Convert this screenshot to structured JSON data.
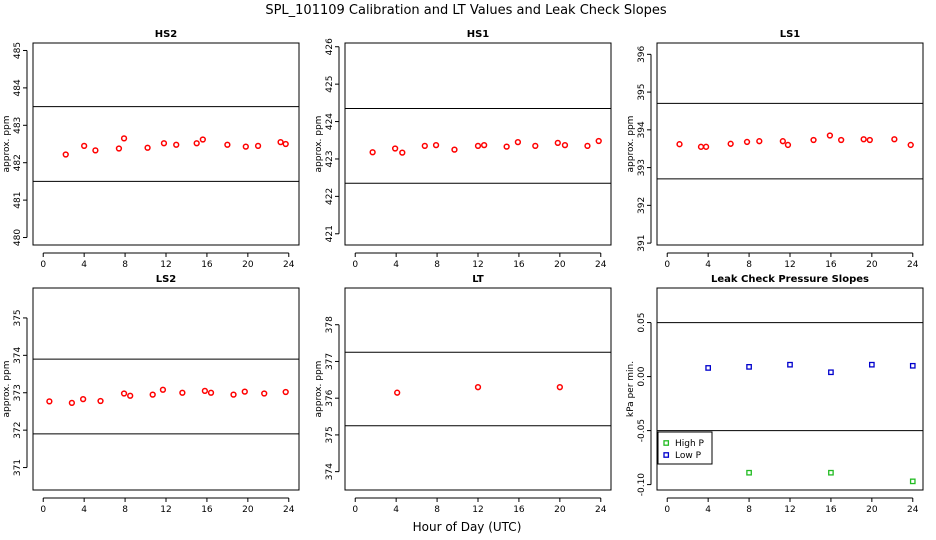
{
  "figure": {
    "title": "SPL_101109  Calibration and LT Values and Leak Check Slopes",
    "xlabel": "Hour of Day (UTC)"
  },
  "chart_data": [
    {
      "type": "scatter",
      "title": "HS2",
      "ylabel": "approx. ppm",
      "xlim": [
        -1,
        25
      ],
      "ylim": [
        479.8,
        485.2
      ],
      "xticks": [
        0,
        4,
        8,
        12,
        16,
        20,
        24
      ],
      "yticks": [
        480,
        481,
        482,
        483,
        484,
        485
      ],
      "hlines": [
        483.5,
        481.5
      ],
      "series": [
        {
          "name": "values",
          "color": "#ff0000",
          "x": [
            2.2,
            4.0,
            5.1,
            7.4,
            7.9,
            10.2,
            11.8,
            13.0,
            15.0,
            15.6,
            18.0,
            19.8,
            21.0,
            23.2,
            23.7
          ],
          "y": [
            482.22,
            482.45,
            482.33,
            482.38,
            482.65,
            482.4,
            482.52,
            482.48,
            482.52,
            482.62,
            482.48,
            482.43,
            482.45,
            482.55,
            482.5
          ]
        }
      ]
    },
    {
      "type": "scatter",
      "title": "HS1",
      "ylabel": "approx. ppm",
      "xlim": [
        -1,
        25
      ],
      "ylim": [
        420.7,
        426.1
      ],
      "xticks": [
        0,
        4,
        8,
        12,
        16,
        20,
        24
      ],
      "yticks": [
        421,
        422,
        423,
        424,
        425,
        426
      ],
      "hlines": [
        424.35,
        422.35
      ],
      "series": [
        {
          "name": "values",
          "color": "#ff0000",
          "x": [
            1.7,
            3.9,
            4.6,
            6.8,
            7.9,
            9.7,
            12.0,
            12.6,
            14.8,
            15.9,
            17.6,
            19.8,
            20.5,
            22.7,
            23.8
          ],
          "y": [
            423.18,
            423.28,
            423.17,
            423.35,
            423.37,
            423.25,
            423.35,
            423.37,
            423.33,
            423.45,
            423.35,
            423.43,
            423.37,
            423.35,
            423.48
          ]
        }
      ]
    },
    {
      "type": "scatter",
      "title": "LS1",
      "ylabel": "approx. ppm",
      "xlim": [
        -1,
        25
      ],
      "ylim": [
        390.95,
        396.3
      ],
      "xticks": [
        0,
        4,
        8,
        12,
        16,
        20,
        24
      ],
      "yticks": [
        391,
        392,
        393,
        394,
        395,
        396
      ],
      "hlines": [
        394.7,
        392.7
      ],
      "series": [
        {
          "name": "values",
          "color": "#ff0000",
          "x": [
            1.2,
            3.3,
            3.8,
            6.2,
            7.8,
            9.0,
            11.3,
            11.8,
            14.3,
            15.9,
            17.0,
            19.2,
            19.8,
            22.2,
            23.8
          ],
          "y": [
            393.62,
            393.55,
            393.55,
            393.63,
            393.68,
            393.7,
            393.7,
            393.6,
            393.73,
            393.85,
            393.73,
            393.75,
            393.73,
            393.75,
            393.6
          ]
        }
      ]
    },
    {
      "type": "scatter",
      "title": "LS2",
      "ylabel": "approx. ppm",
      "xlim": [
        -1,
        25
      ],
      "ylim": [
        370.4,
        375.8
      ],
      "xticks": [
        0,
        4,
        8,
        12,
        16,
        20,
        24
      ],
      "yticks": [
        371,
        372,
        373,
        374,
        375
      ],
      "hlines": [
        373.9,
        371.9
      ],
      "series": [
        {
          "name": "values",
          "color": "#ff0000",
          "x": [
            0.6,
            2.8,
            3.9,
            5.6,
            7.9,
            8.5,
            10.7,
            11.7,
            13.6,
            15.8,
            16.4,
            18.6,
            19.7,
            21.6,
            23.7
          ],
          "y": [
            372.77,
            372.73,
            372.83,
            372.78,
            372.98,
            372.92,
            372.95,
            373.08,
            373.0,
            373.05,
            373.0,
            372.95,
            373.03,
            372.98,
            373.02
          ]
        }
      ]
    },
    {
      "type": "scatter",
      "title": "LT",
      "ylabel": "approx. ppm",
      "xlim": [
        -1,
        25
      ],
      "ylim": [
        373.5,
        379.0
      ],
      "xticks": [
        0,
        4,
        8,
        12,
        16,
        20,
        24
      ],
      "yticks": [
        374,
        375,
        376,
        377,
        378
      ],
      "hlines": [
        377.25,
        375.25
      ],
      "series": [
        {
          "name": "values",
          "color": "#ff0000",
          "x": [
            4.1,
            12.0,
            20.0
          ],
          "y": [
            376.15,
            376.3,
            376.3
          ]
        }
      ]
    },
    {
      "type": "scatter",
      "title": "Leak Check Pressure Slopes",
      "ylabel": "kPa per min.",
      "xlim": [
        -1,
        25
      ],
      "ylim": [
        -0.105,
        0.082
      ],
      "xticks": [
        0,
        4,
        8,
        12,
        16,
        20,
        24
      ],
      "yticks": [
        -0.1,
        -0.05,
        0.0,
        0.05
      ],
      "ytick_labels": [
        "-0.10",
        "-0.05",
        "0.00",
        "0.05"
      ],
      "hlines": [
        0.05,
        -0.05
      ],
      "legend": "bottom-left",
      "series": [
        {
          "name": "High P",
          "color": "#22bb22",
          "x": [
            8,
            16,
            24
          ],
          "y": [
            -0.089,
            -0.089,
            -0.097
          ]
        },
        {
          "name": "Low P",
          "color": "#0000cc",
          "x": [
            4,
            8,
            12,
            16,
            20,
            24
          ],
          "y": [
            0.008,
            0.009,
            0.011,
            0.004,
            0.011,
            0.01
          ]
        }
      ]
    }
  ]
}
